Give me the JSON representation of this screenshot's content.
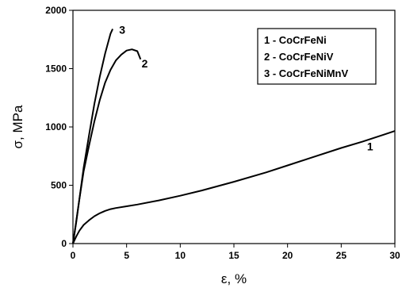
{
  "chart_data": {
    "type": "line",
    "xlabel": "ε, %",
    "ylabel": "σ, MPa",
    "xlim": [
      0,
      30
    ],
    "ylim": [
      0,
      2000
    ],
    "xticks": [
      0,
      5,
      10,
      15,
      20,
      25,
      30
    ],
    "yticks": [
      0,
      500,
      1000,
      1500,
      2000
    ],
    "grid": false,
    "legend_position": "top-right",
    "legend": [
      "1 - CoCrFeNi",
      "2 - CoCrFeNiV",
      "3 - CoCrFeNiMnV"
    ],
    "series": [
      {
        "name": "1",
        "x": [
          0,
          0.3,
          0.6,
          1.0,
          1.5,
          2.0,
          2.5,
          3.0,
          3.5,
          4.0,
          5.0,
          6.0,
          8.0,
          10.0,
          12.0,
          15.0,
          18.0,
          20.0,
          22.0,
          25.0,
          27.0,
          29.0,
          30.0
        ],
        "y": [
          0,
          60,
          110,
          160,
          200,
          235,
          260,
          280,
          295,
          305,
          320,
          335,
          370,
          410,
          455,
          530,
          610,
          670,
          730,
          820,
          875,
          935,
          965
        ]
      },
      {
        "name": "2",
        "x": [
          0,
          0.3,
          0.6,
          1.0,
          1.5,
          2.0,
          2.5,
          3.0,
          3.5,
          4.0,
          4.5,
          5.0,
          5.5,
          6.0,
          6.3
        ],
        "y": [
          0,
          190,
          380,
          620,
          840,
          1050,
          1230,
          1380,
          1490,
          1570,
          1620,
          1655,
          1665,
          1650,
          1580
        ]
      },
      {
        "name": "3",
        "x": [
          0,
          0.3,
          0.6,
          1.0,
          1.5,
          2.0,
          2.5,
          3.0,
          3.5,
          3.7
        ],
        "y": [
          0,
          180,
          380,
          650,
          930,
          1200,
          1430,
          1630,
          1800,
          1840
        ]
      }
    ]
  }
}
